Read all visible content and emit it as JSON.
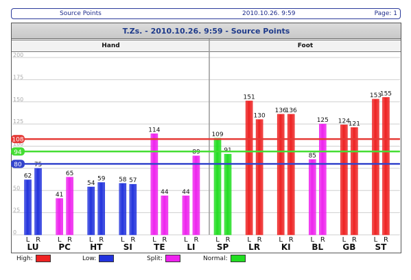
{
  "header": {
    "left": "Source Points",
    "center": "2010.10.26. 9:59",
    "right": "Page: 1"
  },
  "chart_data": {
    "type": "bar",
    "title": "T.Zs. - 2010.10.26. 9:59 - Source Points",
    "groups": [
      {
        "label": "Hand",
        "meridians": [
          "LU",
          "PC",
          "HT",
          "SI",
          "TE",
          "LI"
        ]
      },
      {
        "label": "Foot",
        "meridians": [
          "SP",
          "LR",
          "KI",
          "BL",
          "GB",
          "ST"
        ]
      }
    ],
    "side_labels": [
      "L",
      "R"
    ],
    "yticks": [
      "0",
      "25",
      "50",
      "75",
      "100",
      "125",
      "150",
      "175",
      "200"
    ],
    "ylim": [
      0,
      200
    ],
    "grid": true,
    "reference_lines": [
      {
        "label": "108",
        "value": 108,
        "color": "#e53935"
      },
      {
        "label": "94",
        "value": 94,
        "color": "#44dd33"
      },
      {
        "label": "80",
        "value": 80,
        "color": "#3344cc"
      }
    ],
    "categories": [
      "LU",
      "PC",
      "HT",
      "SI",
      "TE",
      "LI",
      "SP",
      "LR",
      "KI",
      "BL",
      "GB",
      "ST"
    ],
    "bars": [
      {
        "L": {
          "value": 62,
          "status": "Low"
        },
        "R": {
          "value": 75,
          "status": "Low"
        }
      },
      {
        "L": {
          "value": 41,
          "status": "Split"
        },
        "R": {
          "value": 65,
          "status": "Split"
        }
      },
      {
        "L": {
          "value": 54,
          "status": "Low"
        },
        "R": {
          "value": 59,
          "status": "Low"
        }
      },
      {
        "L": {
          "value": 58,
          "status": "Low"
        },
        "R": {
          "value": 57,
          "status": "Low"
        }
      },
      {
        "L": {
          "value": 114,
          "status": "Split"
        },
        "R": {
          "value": 44,
          "status": "Split"
        }
      },
      {
        "L": {
          "value": 44,
          "status": "Split"
        },
        "R": {
          "value": 89,
          "status": "Split"
        }
      },
      {
        "L": {
          "value": 109,
          "status": "Normal"
        },
        "R": {
          "value": 91,
          "status": "Normal"
        }
      },
      {
        "L": {
          "value": 151,
          "status": "High"
        },
        "R": {
          "value": 130,
          "status": "High"
        }
      },
      {
        "L": {
          "value": 136,
          "status": "High"
        },
        "R": {
          "value": 136,
          "status": "High"
        }
      },
      {
        "L": {
          "value": 85,
          "status": "Split"
        },
        "R": {
          "value": 125,
          "status": "Split"
        }
      },
      {
        "L": {
          "value": 124,
          "status": "High"
        },
        "R": {
          "value": 121,
          "status": "High"
        }
      },
      {
        "L": {
          "value": 153,
          "status": "High"
        },
        "R": {
          "value": 155,
          "status": "High"
        }
      }
    ],
    "legend": [
      {
        "label": "High:",
        "status": "High",
        "color": "#ee2222"
      },
      {
        "label": "Low:",
        "status": "Low",
        "color": "#2233dd"
      },
      {
        "label": "Split:",
        "status": "Split",
        "color": "#ee22ee"
      },
      {
        "label": "Normal:",
        "status": "Normal",
        "color": "#22dd22"
      }
    ]
  }
}
